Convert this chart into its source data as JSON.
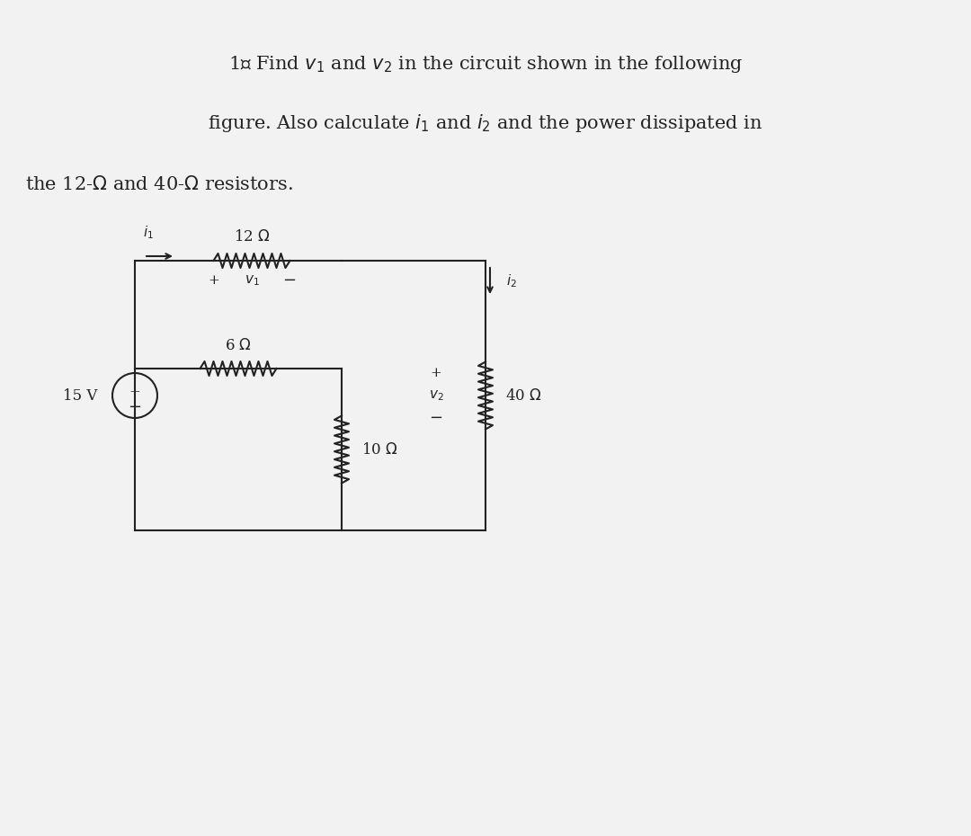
{
  "title_line1": "1、 Find $v_1$ and $v_2$ in the circuit shown in the following",
  "title_line2": "figure. Also calculate $i_1$ and $i_2$ and the power dissipated in",
  "title_line3": "the 12-Ω and 40-Ω resistors.",
  "bg_color": "#f0f0f0",
  "text_color": "#222222",
  "circuit_color": "#222222",
  "fig_width": 10.8,
  "fig_height": 9.3
}
